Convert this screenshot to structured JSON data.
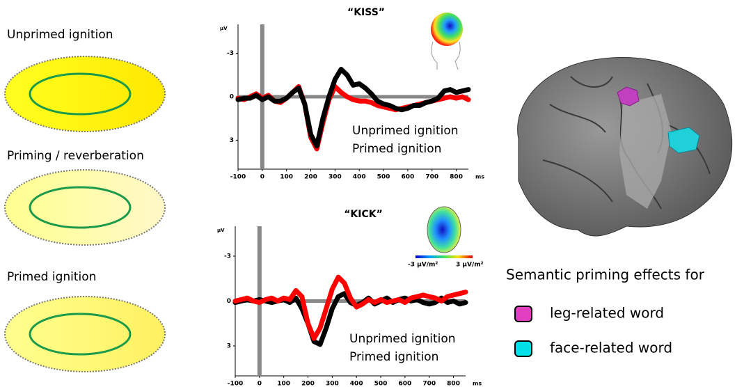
{
  "left_panels": [
    "Unprimed ignition",
    "Priming / reverberation",
    "Primed ignition"
  ],
  "chart_data": [
    {
      "type": "line",
      "title": "“KISS”",
      "ylabel": "µV",
      "xlabel": "ms",
      "x": [
        -100,
        -75,
        -50,
        -25,
        0,
        25,
        50,
        75,
        100,
        125,
        150,
        175,
        200,
        225,
        250,
        275,
        300,
        325,
        350,
        375,
        400,
        425,
        450,
        475,
        500,
        525,
        550,
        575,
        600,
        625,
        650,
        675,
        700,
        725,
        750,
        775,
        800,
        825,
        850
      ],
      "series": [
        {
          "name": "Unprimed ignition",
          "color": "#ff0000",
          "values": [
            0.1,
            0.2,
            0,
            -0.2,
            0.1,
            -0.1,
            0.3,
            0.4,
            0.1,
            -0.3,
            -0.7,
            0.5,
            2.8,
            3.6,
            1.8,
            0.2,
            -0.7,
            -0.3,
            0,
            0.2,
            0.3,
            0.3,
            0.4,
            0.6,
            0.7,
            0.8,
            0.9,
            0.8,
            0.7,
            0.6,
            0.5,
            0.4,
            0.3,
            0.2,
            0.1,
            0,
            0.1,
            0,
            0.2
          ]
        },
        {
          "name": "Primed ignition",
          "color": "#000000",
          "values": [
            0.2,
            0.1,
            0.1,
            -0.1,
            0.2,
            0,
            0.3,
            0.3,
            0.1,
            -0.3,
            -0.6,
            0.5,
            2.6,
            3.4,
            1.5,
            0,
            -1.2,
            -1.9,
            -1.5,
            -0.8,
            -0.9,
            -0.6,
            -0.2,
            0.3,
            0.5,
            0.6,
            0.8,
            0.9,
            0.8,
            0.6,
            0.6,
            0.4,
            0.3,
            0.1,
            -0.4,
            -0.5,
            -0.3,
            -0.4,
            -0.5
          ]
        }
      ],
      "xlim": [
        -100,
        850
      ],
      "xticks": [
        -100,
        0,
        100,
        200,
        300,
        400,
        500,
        600,
        700,
        800
      ],
      "ylim": [
        -5,
        5
      ],
      "yticks": [
        -3,
        0,
        3
      ],
      "y_inverted": true
    },
    {
      "type": "line",
      "title": "“KICK”",
      "ylabel": "µV",
      "xlabel": "ms",
      "x": [
        -100,
        -75,
        -50,
        -25,
        0,
        25,
        50,
        75,
        100,
        125,
        150,
        175,
        200,
        225,
        250,
        275,
        300,
        325,
        350,
        375,
        400,
        425,
        450,
        475,
        500,
        525,
        550,
        575,
        600,
        625,
        650,
        675,
        700,
        725,
        750,
        775,
        800,
        825,
        850
      ],
      "series": [
        {
          "name": "Unprimed ignition",
          "color": "#000000",
          "values": [
            0.1,
            0,
            -0.1,
            0,
            -0.1,
            0,
            0.1,
            0,
            -0.1,
            0.1,
            -0.2,
            0.5,
            1.5,
            2.7,
            2.9,
            1.8,
            0.5,
            -0.3,
            -0.5,
            0.1,
            0.3,
            0.1,
            -0.2,
            0.2,
            0,
            -0.2,
            0.1,
            -0.1,
            -0.2,
            0,
            -0.1,
            0.1,
            0.2,
            0.1,
            -0.2,
            0.1,
            0,
            0.2,
            0.1
          ]
        },
        {
          "name": "Primed ignition",
          "color": "#ff0000",
          "values": [
            0,
            -0.1,
            -0.2,
            0,
            0.1,
            -0.1,
            -0.2,
            0,
            -0.2,
            -0.1,
            -0.7,
            -0.3,
            1.5,
            2.5,
            1.8,
            0.5,
            -0.8,
            -1.6,
            -1.2,
            -0.2,
            0.4,
            0.2,
            -0.1,
            0.1,
            -0.1,
            0.1,
            0,
            -0.1,
            0.1,
            -0.2,
            -0.3,
            -0.4,
            -0.3,
            -0.2,
            0,
            -0.3,
            -0.4,
            -0.5,
            -0.6
          ]
        }
      ],
      "xlim": [
        -100,
        850
      ],
      "xticks": [
        -100,
        0,
        100,
        200,
        300,
        400,
        500,
        600,
        700,
        800
      ],
      "ylim": [
        -5,
        5
      ],
      "yticks": [
        -3,
        0,
        3
      ],
      "y_inverted": true,
      "map_scale": [
        "-3 µV/m²",
        "3 µV/m²"
      ]
    }
  ],
  "brain": {
    "title": "Semantic priming effects for",
    "legend": [
      {
        "name": "leg-related word",
        "color": "#e040c0"
      },
      {
        "name": "face-related word",
        "color": "#00e0e8"
      }
    ]
  }
}
